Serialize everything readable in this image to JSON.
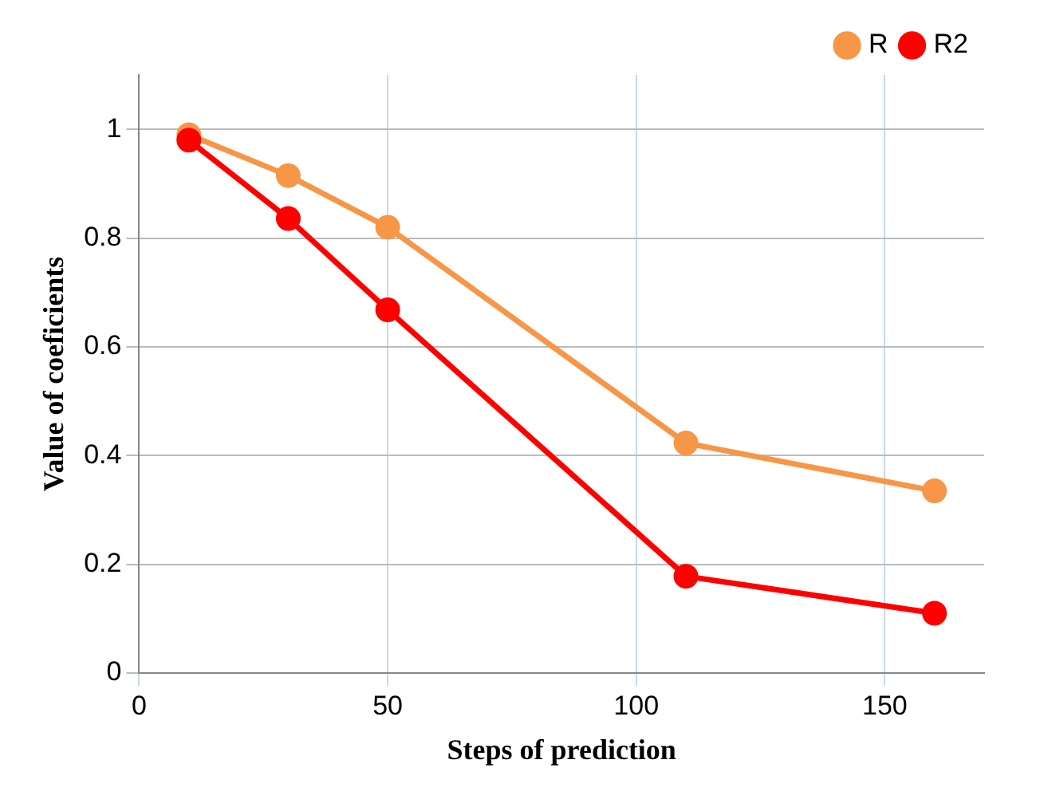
{
  "chart_data": {
    "type": "line",
    "xlabel": "Steps of prediction",
    "ylabel": "Value of coeficients",
    "x": [
      10,
      30,
      50,
      110,
      160
    ],
    "series": [
      {
        "name": "R",
        "color": "#f79646",
        "values": [
          0.99,
          0.915,
          0.82,
          0.423,
          0.335
        ]
      },
      {
        "name": "R2",
        "color": "#ff0000",
        "values": [
          0.98,
          0.836,
          0.668,
          0.178,
          0.11
        ]
      }
    ],
    "xlim": [
      0,
      170
    ],
    "xticks": [
      0,
      50,
      100,
      150
    ],
    "ylim": [
      0,
      1.1
    ],
    "yticks": [
      0,
      0.2,
      0.4,
      0.6,
      0.8,
      1
    ],
    "grid": true,
    "legend": "top right",
    "marker": "circle",
    "line_style": "solid"
  }
}
